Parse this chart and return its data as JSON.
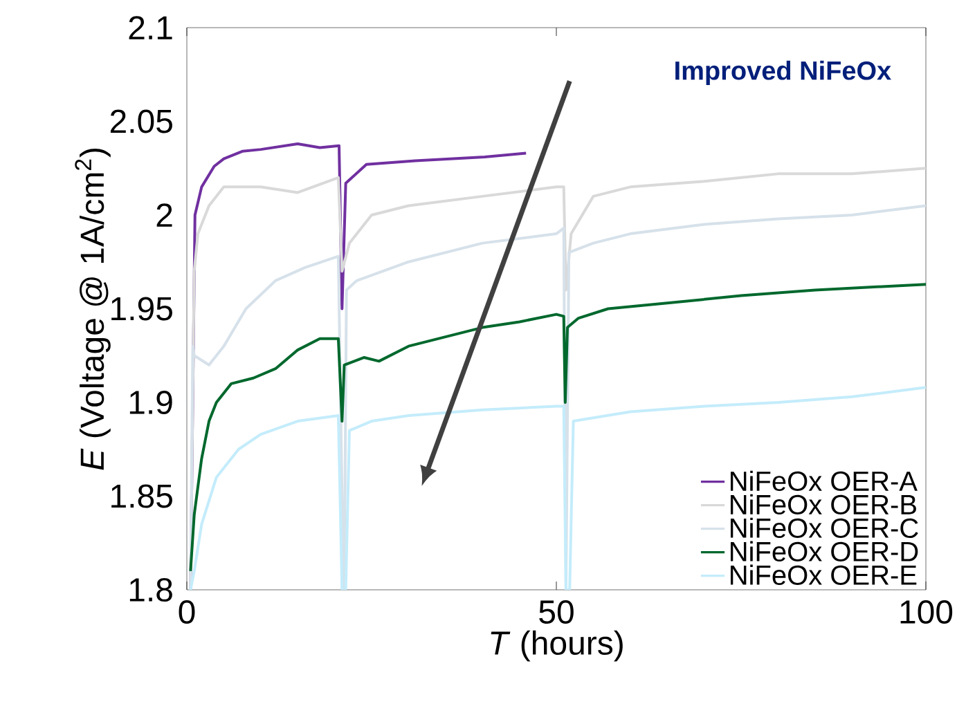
{
  "chart_data": {
    "type": "line",
    "xlabel": "*T* (hours)",
    "ylabel": "*E* (Voltage @ 1A/cm$^{2}$)",
    "annotations": [
      "Improved NiFeOx"
    ],
    "xlim": [
      0,
      100
    ],
    "xticks": [
      0,
      50,
      100
    ],
    "ylim": [
      1.8,
      2.1
    ],
    "yticks": [
      1.8,
      1.85,
      1.9,
      1.95,
      2,
      2.05,
      2.1
    ],
    "legend": "bottom right",
    "grid": false,
    "marker": "none",
    "line_style": "solid",
    "series": [
      {
        "name": "NiFeOx OER-A",
        "color": "#7030a0",
        "x": [
          0.5,
          1.1,
          2,
          3.7,
          5,
          7.5,
          10,
          15,
          18,
          20.6,
          21,
          21.5,
          24.3,
          30.9,
          40.3,
          45.9
        ],
        "values": [
          1.8,
          2.0,
          2.015,
          2.026,
          2.03,
          2.034,
          2.035,
          2.038,
          2.036,
          2.037,
          1.95,
          2.017,
          2.027,
          2.029,
          2.031,
          2.033
        ]
      },
      {
        "name": "NiFeOx OER-B",
        "color": "#d9d9d9",
        "x": [
          0.5,
          1,
          1.5,
          3,
          5,
          10,
          15,
          20.5,
          21,
          22,
          25,
          30,
          40,
          50,
          51,
          51.3,
          52,
          55,
          60,
          70,
          80,
          90,
          100
        ],
        "values": [
          1.8,
          1.97,
          1.99,
          2.005,
          2.015,
          2.015,
          2.012,
          2.02,
          1.97,
          1.985,
          2.0,
          2.005,
          2.01,
          2.015,
          2.015,
          1.96,
          1.99,
          2.01,
          2.015,
          2.018,
          2.022,
          2.022,
          2.025
        ]
      },
      {
        "name": "NiFeOx OER-C",
        "color": "#d6e1ea",
        "x": [
          0.5,
          0.8,
          1,
          3,
          5,
          8,
          12,
          16,
          20.5,
          21,
          21.3,
          21.6,
          23,
          30,
          40,
          50,
          51,
          51.3,
          51.7,
          55,
          60,
          70,
          80,
          90,
          100
        ],
        "values": [
          1.8,
          1.93,
          1.925,
          1.92,
          1.93,
          1.95,
          1.965,
          1.972,
          1.978,
          1.85,
          1.8,
          1.96,
          1.965,
          1.975,
          1.985,
          1.99,
          1.993,
          1.8,
          1.98,
          1.985,
          1.99,
          1.995,
          1.998,
          2.0,
          2.005
        ]
      },
      {
        "name": "NiFeOx OER-D",
        "color": "#00682d",
        "x": [
          0.5,
          1,
          2,
          3,
          4,
          6,
          9,
          12,
          15,
          18,
          20.5,
          21,
          21.3,
          24,
          26,
          30,
          35,
          40,
          45,
          50,
          51,
          51.2,
          51.5,
          53,
          57,
          65,
          75,
          85,
          95,
          100
        ],
        "values": [
          1.81,
          1.84,
          1.87,
          1.89,
          1.9,
          1.91,
          1.913,
          1.918,
          1.928,
          1.934,
          1.934,
          1.89,
          1.92,
          1.924,
          1.922,
          1.93,
          1.935,
          1.94,
          1.943,
          1.947,
          1.946,
          1.9,
          1.94,
          1.945,
          1.95,
          1.953,
          1.957,
          1.96,
          1.962,
          1.963
        ]
      },
      {
        "name": "NiFeOx OER-E",
        "color": "#c4ecfb",
        "x": [
          0.5,
          1,
          2,
          4,
          7,
          10,
          15,
          20.5,
          21,
          21.5,
          22,
          25,
          30,
          40,
          50,
          51,
          51.3,
          51.8,
          52.3,
          60,
          70,
          80,
          90,
          100
        ],
        "values": [
          1.8,
          1.81,
          1.835,
          1.86,
          1.875,
          1.883,
          1.89,
          1.893,
          1.8,
          1.8,
          1.885,
          1.89,
          1.893,
          1.896,
          1.898,
          1.898,
          1.8,
          1.8,
          1.89,
          1.895,
          1.898,
          1.9,
          1.903,
          1.908
        ]
      }
    ]
  }
}
